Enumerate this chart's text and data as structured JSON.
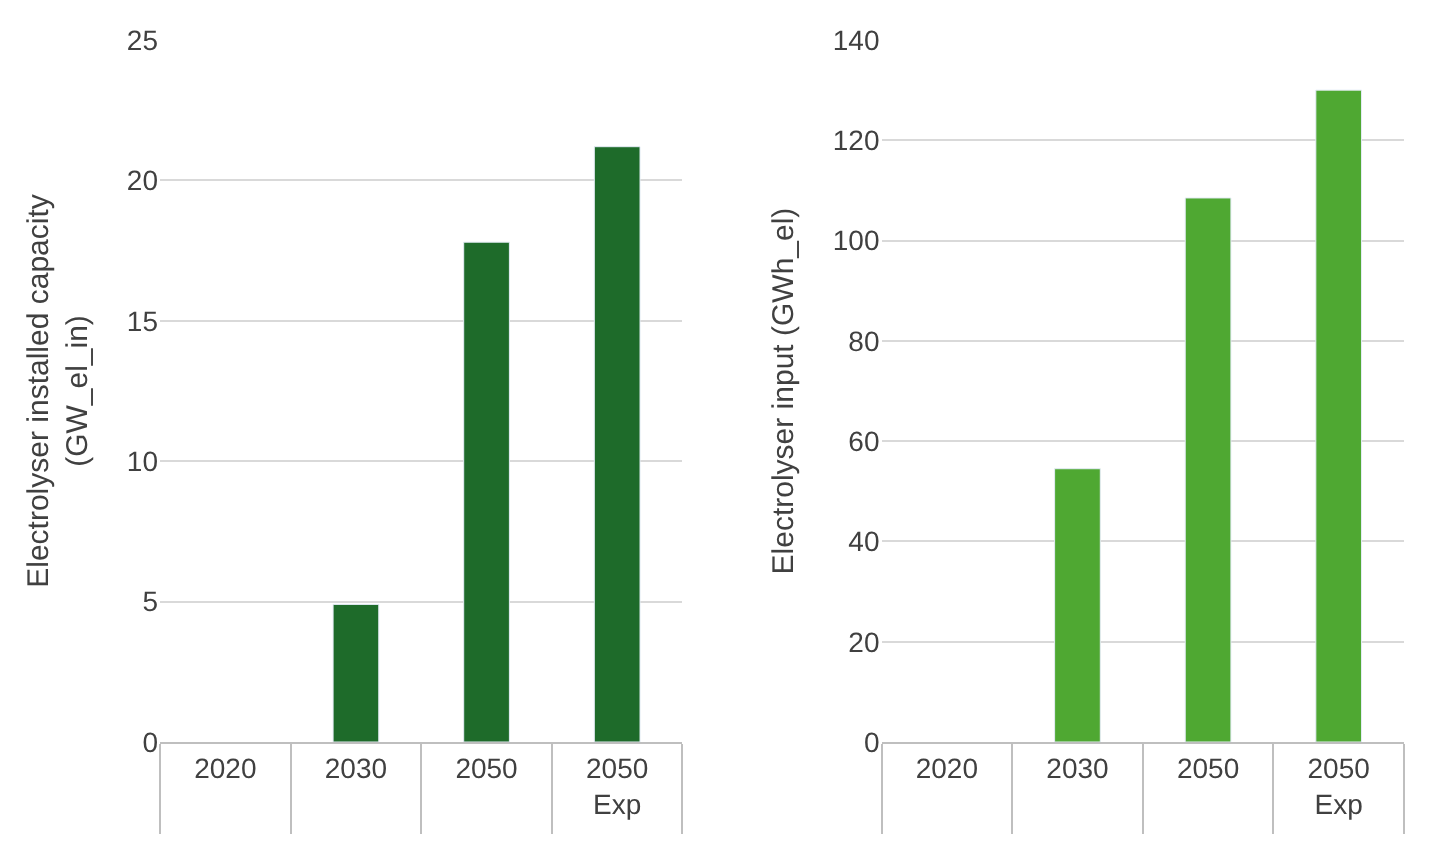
{
  "chart_data": [
    {
      "type": "bar",
      "ylabel": "Electrolyser installed capacity\n(GW_el_in)",
      "categories": [
        "2020",
        "2030",
        "2050",
        "2050\nExp"
      ],
      "values": [
        null,
        4.9,
        17.8,
        21.2
      ],
      "color": "#1e6b2a",
      "ylim": [
        0,
        25
      ],
      "yticks": [
        0,
        5,
        10,
        15,
        20,
        25
      ],
      "grid": "y"
    },
    {
      "type": "bar",
      "ylabel": "Electrolyser input (GWh_el)",
      "categories": [
        "2020",
        "2030",
        "2050",
        "2050\nExp"
      ],
      "values": [
        null,
        54.5,
        108.5,
        130
      ],
      "color": "#4fa832",
      "ylim": [
        0,
        140
      ],
      "yticks": [
        0,
        20,
        40,
        60,
        80,
        100,
        120,
        140
      ],
      "grid": "y"
    }
  ]
}
